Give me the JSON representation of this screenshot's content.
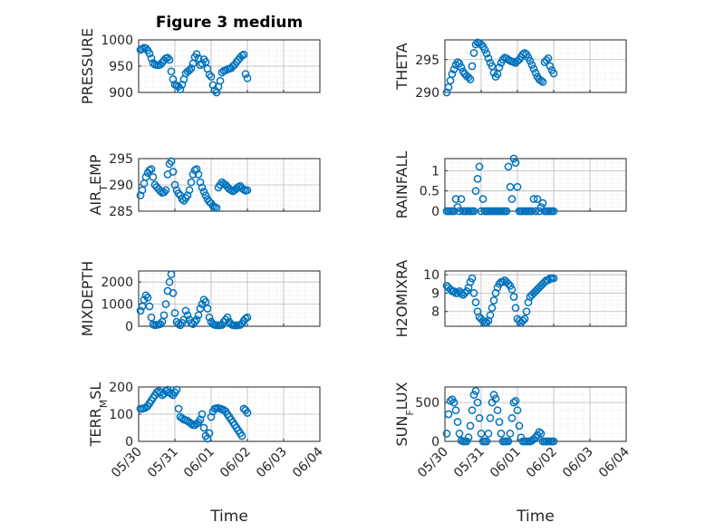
{
  "figure": {
    "title": "Figure 3 medium"
  },
  "colors": {
    "marker": "#0072BD",
    "axis": "#262626",
    "grid": "#b9b9b9"
  },
  "chart_data": [
    {
      "type": "scatter",
      "ylabel": "PRESSURE",
      "ylim": [
        900,
        1000
      ],
      "yticks": [
        900,
        950,
        1000
      ],
      "ytick_labels": [
        "900",
        "950",
        "1000"
      ],
      "xlim": [
        "05/30",
        "06/04"
      ],
      "xticks": [
        "05/30",
        "05/31",
        "06/01",
        "06/02",
        "06/03",
        "06/04"
      ],
      "show_xtick_labels": false,
      "xlabel": "",
      "grid": true,
      "minor_grid": true,
      "x": [
        0.05,
        0.1,
        0.15,
        0.2,
        0.25,
        0.3,
        0.35,
        0.4,
        0.45,
        0.5,
        0.55,
        0.6,
        0.65,
        0.7,
        0.75,
        0.8,
        0.85,
        0.9,
        0.95,
        1.0,
        1.05,
        1.1,
        1.15,
        1.2,
        1.25,
        1.3,
        1.35,
        1.4,
        1.45,
        1.5,
        1.55,
        1.6,
        1.65,
        1.7,
        1.75,
        1.8,
        1.85,
        1.9,
        1.95,
        2.0,
        2.05,
        2.1,
        2.15,
        2.2,
        2.25,
        2.3,
        2.35,
        2.4,
        2.45,
        2.5,
        2.55,
        2.6,
        2.65,
        2.7,
        2.75,
        2.8,
        2.85,
        2.9,
        2.95,
        3.0
      ],
      "y": [
        981,
        983,
        985,
        984,
        980,
        974,
        965,
        956,
        953,
        952,
        952,
        953,
        957,
        961,
        965,
        966,
        962,
        940,
        925,
        915,
        913,
        911,
        906,
        915,
        925,
        936,
        940,
        942,
        946,
        955,
        967,
        973,
        965,
        952,
        955,
        963,
        958,
        945,
        934,
        930,
        914,
        904,
        900,
        911,
        922,
        938,
        941,
        942,
        944,
        945,
        946,
        950,
        953,
        958,
        962,
        966,
        970,
        972,
        935,
        927
      ]
    },
    {
      "type": "scatter",
      "ylabel": "THETA",
      "ylim": [
        290,
        298
      ],
      "yticks": [
        290,
        295
      ],
      "ytick_labels": [
        "290",
        "295"
      ],
      "xlim": [
        "05/30",
        "06/04"
      ],
      "xticks": [
        "05/30",
        "05/31",
        "06/01",
        "06/02",
        "06/03",
        "06/04"
      ],
      "show_xtick_labels": false,
      "xlabel": "",
      "grid": true,
      "minor_grid": true,
      "x": [
        0.05,
        0.1,
        0.15,
        0.2,
        0.25,
        0.3,
        0.35,
        0.4,
        0.45,
        0.5,
        0.55,
        0.6,
        0.65,
        0.7,
        0.75,
        0.8,
        0.85,
        0.9,
        0.95,
        1.0,
        1.05,
        1.1,
        1.15,
        1.2,
        1.25,
        1.3,
        1.35,
        1.4,
        1.45,
        1.5,
        1.55,
        1.6,
        1.65,
        1.7,
        1.75,
        1.8,
        1.85,
        1.9,
        1.95,
        2.0,
        2.05,
        2.1,
        2.15,
        2.2,
        2.25,
        2.3,
        2.35,
        2.4,
        2.45,
        2.5,
        2.55,
        2.6,
        2.65,
        2.7,
        2.75,
        2.8,
        2.85,
        2.9,
        2.95,
        3.0
      ],
      "y": [
        290.0,
        290.8,
        291.8,
        292.8,
        293.5,
        294.2,
        294.6,
        294.4,
        293.8,
        293.2,
        292.8,
        292.5,
        292.3,
        292.0,
        294.0,
        296.0,
        297.3,
        297.6,
        297.5,
        297.3,
        297.0,
        296.5,
        295.9,
        295.2,
        294.5,
        294.0,
        293.0,
        292.4,
        292.8,
        293.8,
        294.5,
        295.0,
        295.3,
        295.2,
        295.0,
        294.8,
        294.7,
        294.6,
        294.5,
        294.8,
        295.0,
        295.4,
        295.8,
        296.0,
        295.8,
        295.3,
        294.8,
        294.2,
        293.6,
        293.0,
        292.4,
        292.0,
        291.8,
        291.6,
        294.6,
        294.9,
        295.2,
        294.0,
        293.4,
        292.9
      ]
    },
    {
      "type": "scatter",
      "ylabel": "AIR_T_EMP",
      "ylabel_parts": [
        "AIR",
        "T",
        "EMP"
      ],
      "ylim": [
        285,
        295
      ],
      "yticks": [
        285,
        290,
        295
      ],
      "ytick_labels": [
        "285",
        "290",
        "295"
      ],
      "xlim": [
        "05/30",
        "06/04"
      ],
      "xticks": [
        "05/30",
        "05/31",
        "06/01",
        "06/02",
        "06/03",
        "06/04"
      ],
      "show_xtick_labels": false,
      "xlabel": "",
      "grid": true,
      "minor_grid": true,
      "x": [
        0.05,
        0.1,
        0.15,
        0.2,
        0.25,
        0.3,
        0.35,
        0.4,
        0.45,
        0.5,
        0.55,
        0.6,
        0.65,
        0.7,
        0.75,
        0.8,
        0.85,
        0.9,
        0.95,
        1.0,
        1.05,
        1.1,
        1.15,
        1.2,
        1.25,
        1.3,
        1.35,
        1.4,
        1.45,
        1.5,
        1.55,
        1.6,
        1.65,
        1.7,
        1.75,
        1.8,
        1.85,
        1.9,
        1.95,
        2.0,
        2.05,
        2.1,
        2.15,
        2.2,
        2.25,
        2.3,
        2.35,
        2.4,
        2.45,
        2.5,
        2.55,
        2.6,
        2.65,
        2.7,
        2.75,
        2.8,
        2.85,
        2.9,
        2.95,
        3.0
      ],
      "y": [
        288.0,
        289.0,
        290.3,
        291.5,
        292.3,
        292.8,
        293.0,
        291.5,
        290.0,
        289.6,
        289.2,
        288.8,
        288.5,
        288.6,
        289.0,
        292.0,
        294.0,
        294.5,
        292.5,
        290.0,
        289.0,
        288.4,
        288.0,
        287.3,
        287.0,
        287.5,
        288.0,
        289.0,
        290.5,
        292.0,
        292.8,
        293.0,
        292.0,
        290.5,
        289.5,
        288.7,
        288.0,
        287.3,
        286.8,
        286.5,
        286.0,
        285.8,
        285.6,
        289.5,
        290.0,
        290.5,
        290.2,
        290.0,
        289.6,
        289.2,
        289.0,
        288.8,
        289.0,
        289.3,
        289.6,
        289.8,
        289.4,
        289.1,
        288.9,
        289.0
      ]
    },
    {
      "type": "scatter",
      "ylabel": "RAINFALL",
      "ylim": [
        0,
        1.3
      ],
      "yticks": [
        0,
        0.5,
        1
      ],
      "ytick_labels": [
        "0",
        "0.5",
        "1"
      ],
      "xlim": [
        "05/30",
        "06/04"
      ],
      "xticks": [
        "05/30",
        "05/31",
        "06/01",
        "06/02",
        "06/03",
        "06/04"
      ],
      "show_xtick_labels": false,
      "xlabel": "",
      "grid": true,
      "minor_grid": true,
      "x": [
        0.05,
        0.1,
        0.15,
        0.2,
        0.25,
        0.3,
        0.35,
        0.4,
        0.45,
        0.5,
        0.55,
        0.6,
        0.65,
        0.7,
        0.75,
        0.8,
        0.85,
        0.9,
        0.95,
        1.0,
        1.05,
        1.1,
        1.15,
        1.2,
        1.25,
        1.3,
        1.35,
        1.4,
        1.45,
        1.5,
        1.55,
        1.6,
        1.65,
        1.7,
        1.75,
        1.8,
        1.85,
        1.9,
        1.95,
        2.0,
        2.05,
        2.1,
        2.15,
        2.2,
        2.25,
        2.3,
        2.35,
        2.4,
        2.45,
        2.5,
        2.55,
        2.6,
        2.65,
        2.7,
        2.75,
        2.8,
        2.85,
        2.9,
        2.95,
        3.0
      ],
      "y": [
        0,
        0,
        0,
        0,
        0,
        0.3,
        0.1,
        0,
        0.3,
        0,
        0,
        0,
        0,
        0,
        0,
        0,
        0.5,
        0.8,
        1.1,
        0,
        0.3,
        0,
        0,
        0,
        0,
        0,
        0,
        0,
        0,
        0,
        0,
        0,
        0,
        0,
        1.1,
        0.6,
        0.3,
        1.3,
        1.2,
        0.6,
        0,
        0,
        0,
        0,
        0,
        0,
        0,
        0,
        0.3,
        0,
        0.3,
        0,
        0.1,
        0.2,
        0,
        0,
        0,
        0,
        0,
        0
      ]
    },
    {
      "type": "scatter",
      "ylabel": "MIXDEPTH",
      "ylim": [
        0,
        2500
      ],
      "yticks": [
        0,
        1000,
        2000
      ],
      "ytick_labels": [
        "0",
        "1000",
        "2000"
      ],
      "xlim": [
        "05/30",
        "06/04"
      ],
      "xticks": [
        "05/30",
        "05/31",
        "06/01",
        "06/02",
        "06/03",
        "06/04"
      ],
      "show_xtick_labels": false,
      "xlabel": "",
      "grid": true,
      "minor_grid": true,
      "x": [
        0.05,
        0.1,
        0.15,
        0.2,
        0.25,
        0.3,
        0.35,
        0.4,
        0.45,
        0.5,
        0.55,
        0.6,
        0.65,
        0.7,
        0.75,
        0.8,
        0.85,
        0.9,
        0.95,
        1.0,
        1.05,
        1.1,
        1.15,
        1.2,
        1.25,
        1.3,
        1.35,
        1.4,
        1.45,
        1.5,
        1.55,
        1.6,
        1.65,
        1.7,
        1.75,
        1.8,
        1.85,
        1.9,
        1.95,
        2.0,
        2.05,
        2.1,
        2.15,
        2.2,
        2.25,
        2.3,
        2.35,
        2.4,
        2.45,
        2.5,
        2.55,
        2.6,
        2.65,
        2.7,
        2.75,
        2.8,
        2.85,
        2.9,
        2.95,
        3.0
      ],
      "y": [
        700,
        900,
        1200,
        1400,
        1300,
        900,
        400,
        80,
        50,
        60,
        80,
        100,
        200,
        500,
        1000,
        1600,
        2000,
        2350,
        1500,
        600,
        200,
        100,
        50,
        150,
        300,
        700,
        500,
        300,
        150,
        100,
        200,
        300,
        500,
        800,
        1000,
        1200,
        1100,
        800,
        400,
        200,
        100,
        60,
        50,
        40,
        50,
        60,
        200,
        300,
        400,
        200,
        100,
        50,
        40,
        40,
        50,
        60,
        120,
        250,
        350,
        400
      ]
    },
    {
      "type": "scatter",
      "ylabel": "H2OMIXRA",
      "ylim": [
        7.2,
        10.2
      ],
      "yticks": [
        8,
        9,
        10
      ],
      "ytick_labels": [
        "8",
        "9",
        "10"
      ],
      "xlim": [
        "05/30",
        "06/04"
      ],
      "xticks": [
        "05/30",
        "05/31",
        "06/01",
        "06/02",
        "06/03",
        "06/04"
      ],
      "show_xtick_labels": false,
      "xlabel": "",
      "grid": true,
      "minor_grid": true,
      "x": [
        0.05,
        0.1,
        0.15,
        0.2,
        0.25,
        0.3,
        0.35,
        0.4,
        0.45,
        0.5,
        0.55,
        0.6,
        0.65,
        0.7,
        0.75,
        0.8,
        0.85,
        0.9,
        0.95,
        1.0,
        1.05,
        1.1,
        1.15,
        1.2,
        1.25,
        1.3,
        1.35,
        1.4,
        1.45,
        1.5,
        1.55,
        1.6,
        1.65,
        1.7,
        1.75,
        1.8,
        1.85,
        1.9,
        1.95,
        2.0,
        2.05,
        2.1,
        2.15,
        2.2,
        2.25,
        2.3,
        2.35,
        2.4,
        2.45,
        2.5,
        2.55,
        2.6,
        2.65,
        2.7,
        2.75,
        2.8,
        2.85,
        2.9,
        2.95,
        3.0
      ],
      "y": [
        9.4,
        9.3,
        9.2,
        9.1,
        9.1,
        9.0,
        9.0,
        9.1,
        9.0,
        8.9,
        9.0,
        9.1,
        9.3,
        9.6,
        9.8,
        9.0,
        8.5,
        8.0,
        7.7,
        7.6,
        7.5,
        7.4,
        7.4,
        7.5,
        7.8,
        8.2,
        8.6,
        9.0,
        9.3,
        9.5,
        9.6,
        9.6,
        9.7,
        9.6,
        9.5,
        9.4,
        9.2,
        8.8,
        8.2,
        7.6,
        7.5,
        7.4,
        7.5,
        7.6,
        8.0,
        8.5,
        8.8,
        8.9,
        9.0,
        9.1,
        9.2,
        9.3,
        9.4,
        9.5,
        9.6,
        9.7,
        9.7,
        9.8,
        9.8,
        9.8
      ]
    },
    {
      "type": "scatter",
      "ylabel": "TERR_M_SL",
      "ylabel_parts": [
        "TERR",
        "M",
        "SL"
      ],
      "ylim": [
        0,
        200
      ],
      "yticks": [
        0,
        100,
        200
      ],
      "ytick_labels": [
        "0",
        "100",
        "200"
      ],
      "xlim": [
        "05/30",
        "06/04"
      ],
      "xticks": [
        "05/30",
        "05/31",
        "06/01",
        "06/02",
        "06/03",
        "06/04"
      ],
      "xtick_labels": [
        "05/30",
        "05/31",
        "06/01",
        "06/02",
        "06/03",
        "06/04"
      ],
      "show_xtick_labels": true,
      "xlabel": "Time",
      "grid": true,
      "minor_grid": true,
      "x": [
        0.05,
        0.1,
        0.15,
        0.2,
        0.25,
        0.3,
        0.35,
        0.4,
        0.45,
        0.5,
        0.55,
        0.6,
        0.65,
        0.7,
        0.75,
        0.8,
        0.85,
        0.9,
        0.95,
        1.0,
        1.05,
        1.1,
        1.15,
        1.2,
        1.25,
        1.3,
        1.35,
        1.4,
        1.45,
        1.5,
        1.55,
        1.6,
        1.65,
        1.7,
        1.75,
        1.8,
        1.85,
        1.9,
        1.95,
        2.0,
        2.05,
        2.1,
        2.15,
        2.2,
        2.25,
        2.3,
        2.35,
        2.4,
        2.45,
        2.5,
        2.55,
        2.6,
        2.65,
        2.7,
        2.75,
        2.8,
        2.85,
        2.9,
        2.95,
        3.0
      ],
      "y": [
        120,
        120,
        122,
        125,
        130,
        140,
        150,
        160,
        170,
        180,
        185,
        180,
        170,
        175,
        185,
        190,
        180,
        175,
        170,
        180,
        190,
        120,
        90,
        85,
        80,
        78,
        75,
        70,
        65,
        60,
        60,
        65,
        70,
        80,
        100,
        50,
        20,
        10,
        30,
        90,
        110,
        120,
        122,
        122,
        120,
        118,
        115,
        110,
        100,
        90,
        80,
        70,
        60,
        50,
        40,
        30,
        20,
        120,
        115,
        105
      ]
    },
    {
      "type": "scatter",
      "ylabel": "SUN_F_LUX",
      "ylabel_parts": [
        "SUN",
        "F",
        "LUX"
      ],
      "ylim": [
        0,
        700
      ],
      "yticks": [
        0,
        500
      ],
      "ytick_labels": [
        "0",
        "500"
      ],
      "xlim": [
        "05/30",
        "06/04"
      ],
      "xticks": [
        "05/30",
        "05/31",
        "06/01",
        "06/02",
        "06/03",
        "06/04"
      ],
      "xtick_labels": [
        "05/30",
        "05/31",
        "06/01",
        "06/02",
        "06/03",
        "06/04"
      ],
      "show_xtick_labels": true,
      "xlabel": "Time",
      "grid": true,
      "minor_grid": true,
      "x": [
        0.05,
        0.1,
        0.15,
        0.2,
        0.25,
        0.3,
        0.35,
        0.4,
        0.45,
        0.5,
        0.55,
        0.6,
        0.65,
        0.7,
        0.75,
        0.8,
        0.85,
        0.9,
        0.95,
        1.0,
        1.05,
        1.1,
        1.15,
        1.2,
        1.25,
        1.3,
        1.35,
        1.4,
        1.45,
        1.5,
        1.55,
        1.6,
        1.65,
        1.7,
        1.75,
        1.8,
        1.85,
        1.9,
        1.95,
        2.0,
        2.05,
        2.1,
        2.15,
        2.2,
        2.25,
        2.3,
        2.35,
        2.4,
        2.45,
        2.5,
        2.55,
        2.6,
        2.65,
        2.7,
        2.75,
        2.8,
        2.85,
        2.9,
        2.95,
        3.0
      ],
      "y": [
        100,
        350,
        520,
        540,
        500,
        400,
        250,
        100,
        10,
        0,
        0,
        0,
        50,
        200,
        400,
        600,
        650,
        500,
        300,
        100,
        0,
        0,
        0,
        100,
        300,
        500,
        600,
        550,
        400,
        250,
        100,
        0,
        0,
        0,
        0,
        100,
        300,
        500,
        520,
        400,
        200,
        50,
        0,
        0,
        0,
        0,
        0,
        10,
        30,
        50,
        80,
        120,
        100,
        0,
        0,
        0,
        0,
        0,
        0,
        0
      ]
    }
  ]
}
